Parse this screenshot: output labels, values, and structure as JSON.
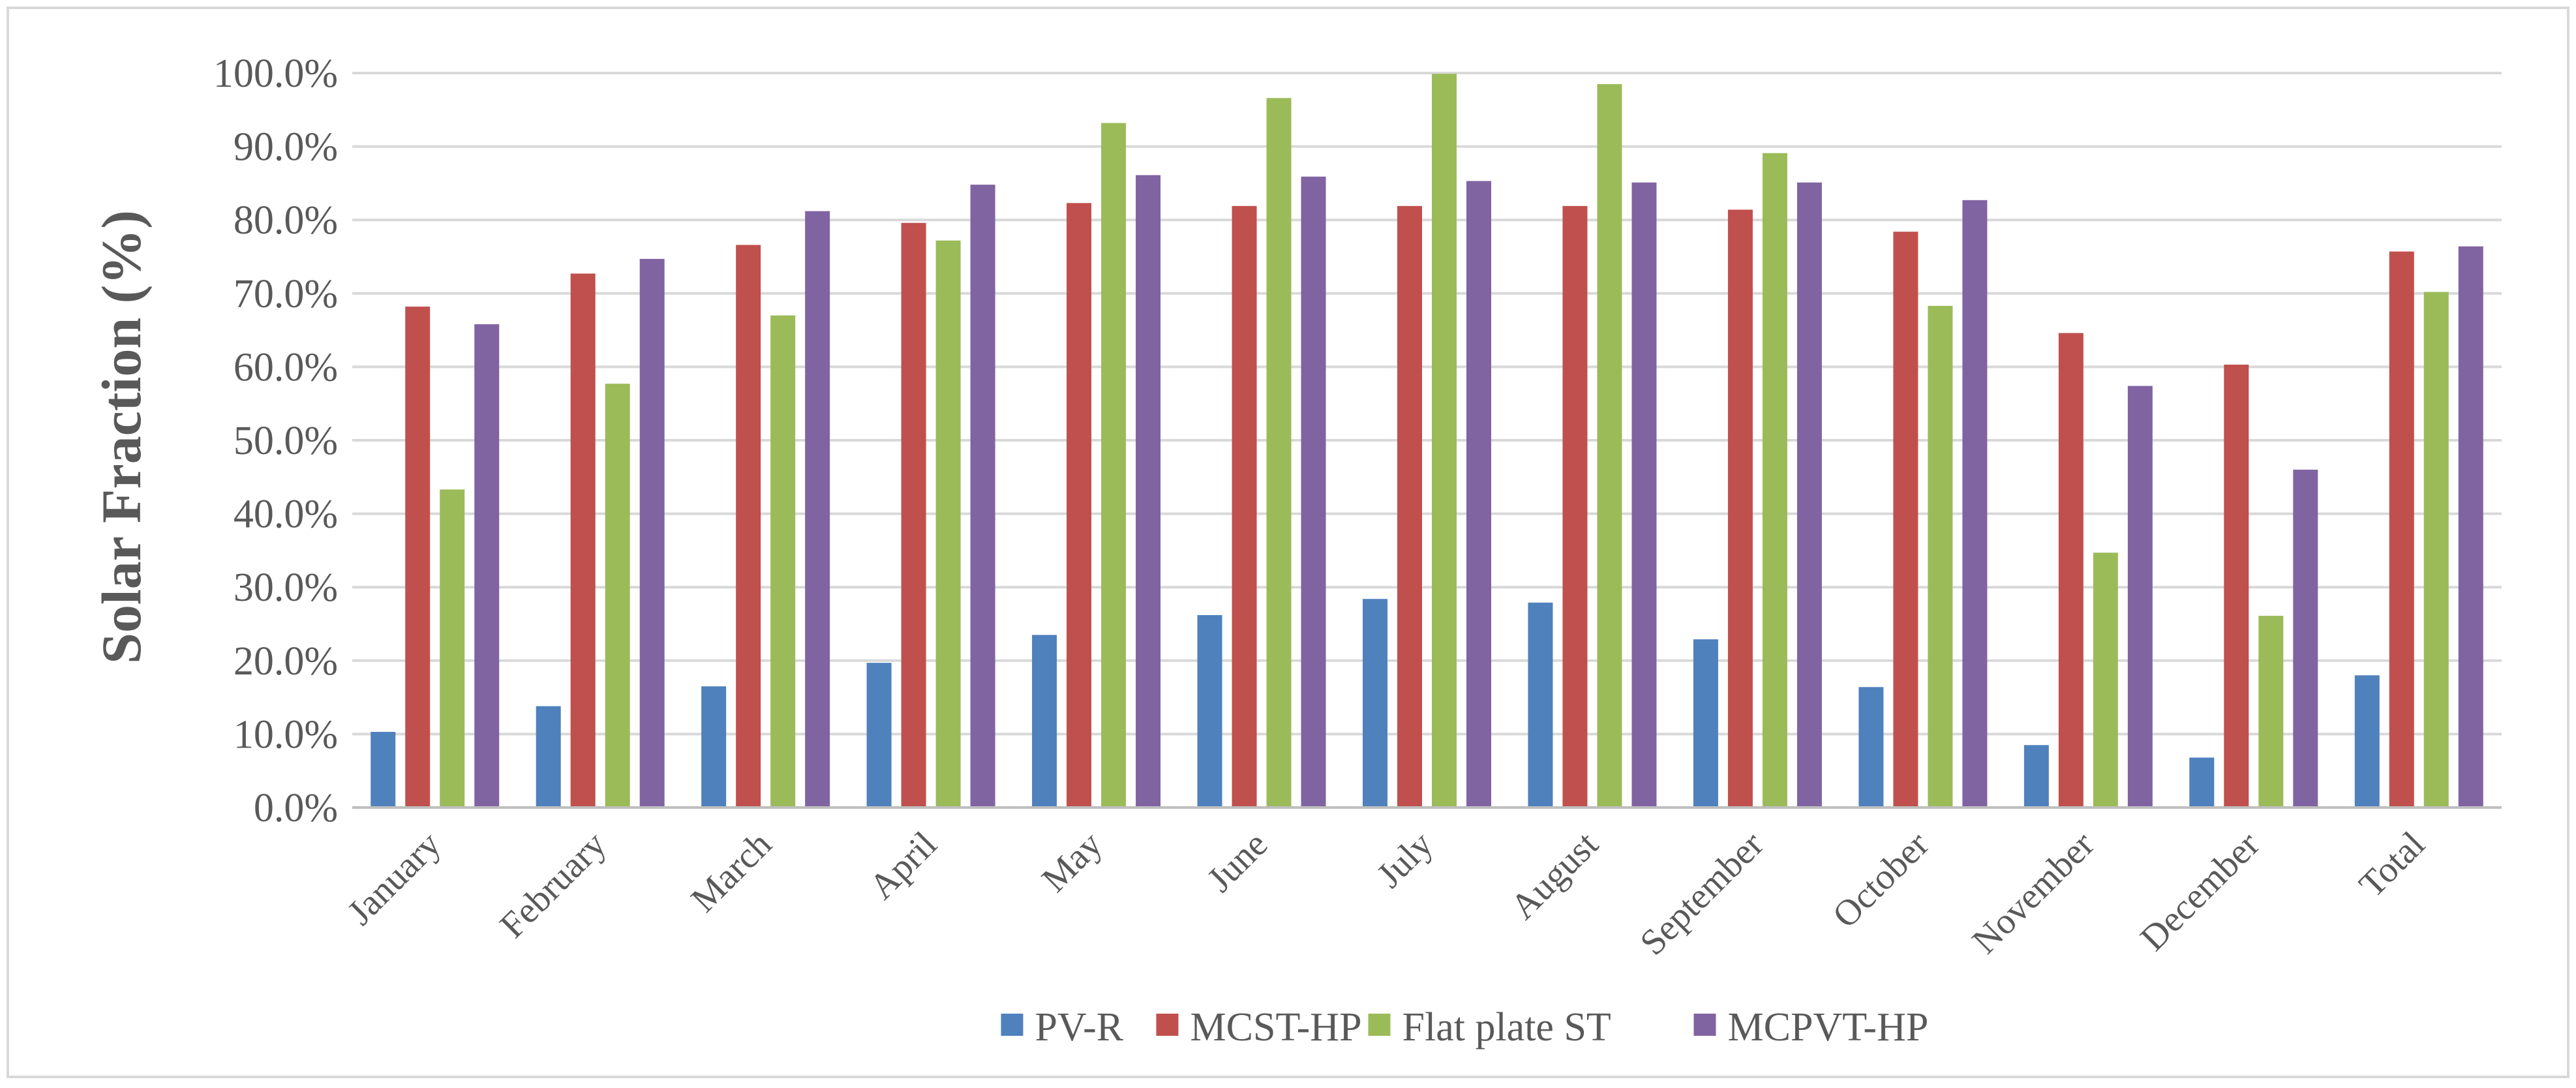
{
  "chart_data": {
    "type": "bar",
    "title": "",
    "xlabel": "",
    "ylabel": "Solar Fraction (%)",
    "ylim": [
      0,
      100
    ],
    "yticks": [
      "0.0%",
      "10.0%",
      "20.0%",
      "30.0%",
      "40.0%",
      "50.0%",
      "60.0%",
      "70.0%",
      "80.0%",
      "90.0%",
      "100.0%"
    ],
    "grid": true,
    "legend_position": "bottom",
    "categories": [
      "January",
      "February",
      "March",
      "April",
      "May",
      "June",
      "July",
      "August",
      "September",
      "October",
      "November",
      "December",
      "Total"
    ],
    "series": [
      {
        "name": "PV-R",
        "color": "#4f81bd",
        "values": [
          10.3,
          13.8,
          16.5,
          19.7,
          23.5,
          26.2,
          28.4,
          27.9,
          22.9,
          16.4,
          8.5,
          6.8,
          18.0
        ]
      },
      {
        "name": "MCST-HP",
        "color": "#c0504d",
        "values": [
          68.2,
          72.7,
          76.6,
          79.6,
          82.3,
          81.9,
          81.9,
          81.9,
          81.4,
          78.4,
          64.6,
          60.3,
          75.7
        ]
      },
      {
        "name": "Flat plate ST",
        "color": "#9bbb59",
        "values": [
          43.3,
          57.7,
          67.0,
          77.2,
          93.2,
          96.6,
          99.9,
          98.5,
          89.1,
          68.3,
          34.7,
          26.1,
          70.2
        ]
      },
      {
        "name": "MCPVT-HP",
        "color": "#8064a2",
        "values": [
          65.8,
          74.7,
          81.2,
          84.8,
          86.1,
          85.9,
          85.3,
          85.1,
          85.1,
          82.7,
          57.4,
          46.0,
          76.4
        ]
      }
    ]
  }
}
